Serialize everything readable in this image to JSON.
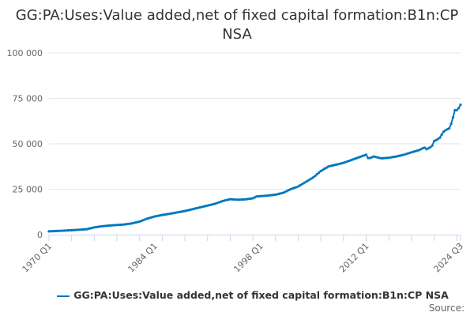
{
  "chart_data": {
    "type": "line",
    "title": "GG:PA:Uses:Value added,net of fixed capital formation:B1n:CP NSA",
    "xlabel": "",
    "ylabel": "",
    "ylim": [
      0,
      100000
    ],
    "xlim": [
      1970.0,
      2024.5
    ],
    "yticks": [
      0,
      25000,
      50000,
      75000,
      100000
    ],
    "ytick_labels": [
      "0",
      "25 000",
      "50 000",
      "75 000",
      "100 000"
    ],
    "xtick_labels": [
      "1970 Q1",
      "1984 Q1",
      "1998 Q1",
      "2012 Q1",
      "2024 Q3"
    ],
    "xtick_values": [
      1970.0,
      1984.0,
      1998.0,
      2012.0,
      2024.5
    ],
    "grid": true,
    "legend_position": "bottom",
    "series": [
      {
        "name": "GG:PA:Uses:Value added,net of fixed capital formation:B1n:CP NSA",
        "color": "#0077c0",
        "points": [
          [
            1970,
            1800
          ],
          [
            1972,
            2200
          ],
          [
            1974,
            2700
          ],
          [
            1975,
            3000
          ],
          [
            1976,
            4000
          ],
          [
            1977,
            4600
          ],
          [
            1978,
            5000
          ],
          [
            1980,
            5600
          ],
          [
            1981,
            6200
          ],
          [
            1982,
            7200
          ],
          [
            1983,
            8800
          ],
          [
            1984,
            10000
          ],
          [
            1985,
            10800
          ],
          [
            1986,
            11500
          ],
          [
            1988,
            13000
          ],
          [
            1990,
            15000
          ],
          [
            1992,
            17000
          ],
          [
            1993,
            18500
          ],
          [
            1994,
            19500
          ],
          [
            1995,
            19200
          ],
          [
            1996,
            19400
          ],
          [
            1997,
            20000
          ],
          [
            1997.5,
            21000
          ],
          [
            1999,
            21500
          ],
          [
            2000,
            22000
          ],
          [
            2001,
            23000
          ],
          [
            2002,
            25000
          ],
          [
            2003,
            26500
          ],
          [
            2004,
            29000
          ],
          [
            2005,
            31500
          ],
          [
            2006,
            35000
          ],
          [
            2007,
            37500
          ],
          [
            2008,
            38500
          ],
          [
            2009,
            39500
          ],
          [
            2010,
            41000
          ],
          [
            2011,
            42500
          ],
          [
            2012,
            44000
          ],
          [
            2012.3,
            41800
          ],
          [
            2013,
            43000
          ],
          [
            2014,
            42000
          ],
          [
            2015,
            42300
          ],
          [
            2016,
            43000
          ],
          [
            2017,
            44000
          ],
          [
            2018,
            45300
          ],
          [
            2019,
            46500
          ],
          [
            2019.7,
            48000
          ],
          [
            2020,
            47000
          ],
          [
            2020.7,
            48500
          ],
          [
            2021,
            51500
          ],
          [
            2021.7,
            53000
          ],
          [
            2022.3,
            57000
          ],
          [
            2023,
            58500
          ],
          [
            2023.4,
            62500
          ],
          [
            2023.7,
            68500
          ],
          [
            2024.1,
            68500
          ],
          [
            2024.5,
            71500
          ]
        ]
      }
    ],
    "source_label": "Source:"
  }
}
